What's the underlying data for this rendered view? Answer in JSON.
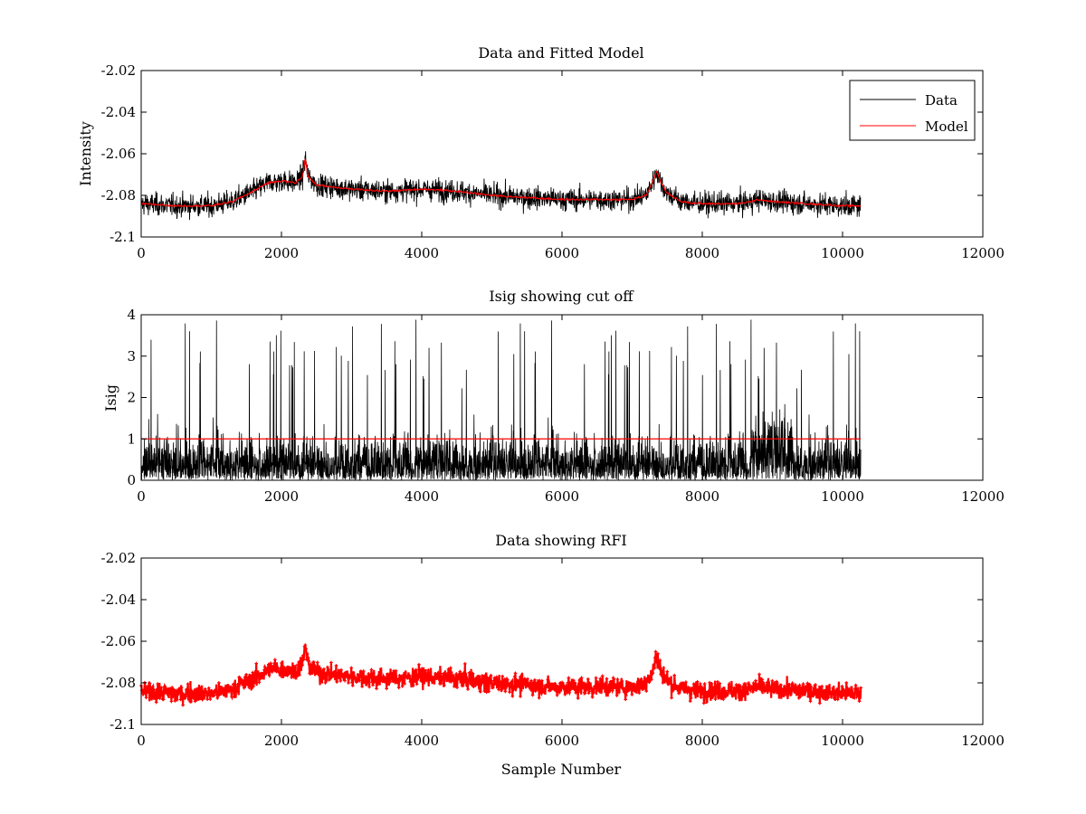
{
  "chart_data": [
    {
      "type": "line",
      "title": "Data and Fitted Model",
      "xlabel": "",
      "ylabel": "Intensity",
      "xlim": [
        0,
        12000
      ],
      "ylim": [
        -2.1,
        -2.02
      ],
      "xticks": [
        "0",
        "2000",
        "4000",
        "6000",
        "8000",
        "10000",
        "12000"
      ],
      "yticks": [
        "-2.02",
        "-2.04",
        "-2.06",
        "-2.08",
        "-2.1"
      ],
      "ytick_values": [
        -2.02,
        -2.04,
        -2.06,
        -2.08,
        -2.1
      ],
      "grid": false,
      "legend_position": "top-right",
      "x_range": [
        0,
        10260
      ],
      "series": [
        {
          "name": "Data",
          "color": "#000000",
          "style": "noisy-line",
          "noise_amplitude": 0.0045
        },
        {
          "name": "Model",
          "color": "#ff0000",
          "style": "line"
        }
      ],
      "baseline": {
        "x": [
          0,
          500,
          1000,
          1300,
          1600,
          1800,
          2000,
          2200,
          2300,
          2340,
          2380,
          2500,
          3000,
          3500,
          4000,
          4500,
          5000,
          6000,
          6500,
          7000,
          7200,
          7300,
          7350,
          7400,
          7500,
          7700,
          8000,
          8500,
          8700,
          8800,
          9000,
          9500,
          10000,
          10260
        ],
        "y": [
          -2.084,
          -2.085,
          -2.085,
          -2.083,
          -2.078,
          -2.074,
          -2.073,
          -2.074,
          -2.071,
          -2.062,
          -2.071,
          -2.075,
          -2.077,
          -2.078,
          -2.077,
          -2.078,
          -2.08,
          -2.082,
          -2.082,
          -2.082,
          -2.08,
          -2.073,
          -2.068,
          -2.073,
          -2.079,
          -2.083,
          -2.084,
          -2.084,
          -2.083,
          -2.082,
          -2.083,
          -2.084,
          -2.085,
          -2.085
        ]
      }
    },
    {
      "type": "line",
      "title": "Isig showing cut off",
      "xlabel": "",
      "ylabel": "Isig",
      "xlim": [
        0,
        12000
      ],
      "ylim": [
        0,
        4
      ],
      "xticks": [
        "0",
        "2000",
        "4000",
        "6000",
        "8000",
        "10000",
        "12000"
      ],
      "yticks": [
        "0",
        "1",
        "2",
        "3",
        "4"
      ],
      "ytick_values": [
        0,
        1,
        2,
        3,
        4
      ],
      "grid": false,
      "x_range": [
        0,
        10260
      ],
      "series": [
        {
          "name": "",
          "color": "#000000",
          "style": "noise"
        },
        {
          "name": "",
          "color": "#ff0000",
          "style": "hline",
          "y": 1
        }
      ]
    },
    {
      "type": "scatter",
      "title": "Data showing RFI",
      "xlabel": "Sample Number",
      "ylabel": "",
      "xlim": [
        0,
        12000
      ],
      "ylim": [
        -2.1,
        -2.02
      ],
      "xticks": [
        "0",
        "2000",
        "4000",
        "6000",
        "8000",
        "10000",
        "12000"
      ],
      "yticks": [
        "-2.02",
        "-2.04",
        "-2.06",
        "-2.08",
        "-2.1"
      ],
      "ytick_values": [
        -2.02,
        -2.04,
        -2.06,
        -2.08,
        -2.1
      ],
      "grid": false,
      "x_range": [
        0,
        10260
      ],
      "series": [
        {
          "name": "",
          "color": "#ff0000",
          "style": "dense-markers"
        }
      ]
    }
  ]
}
